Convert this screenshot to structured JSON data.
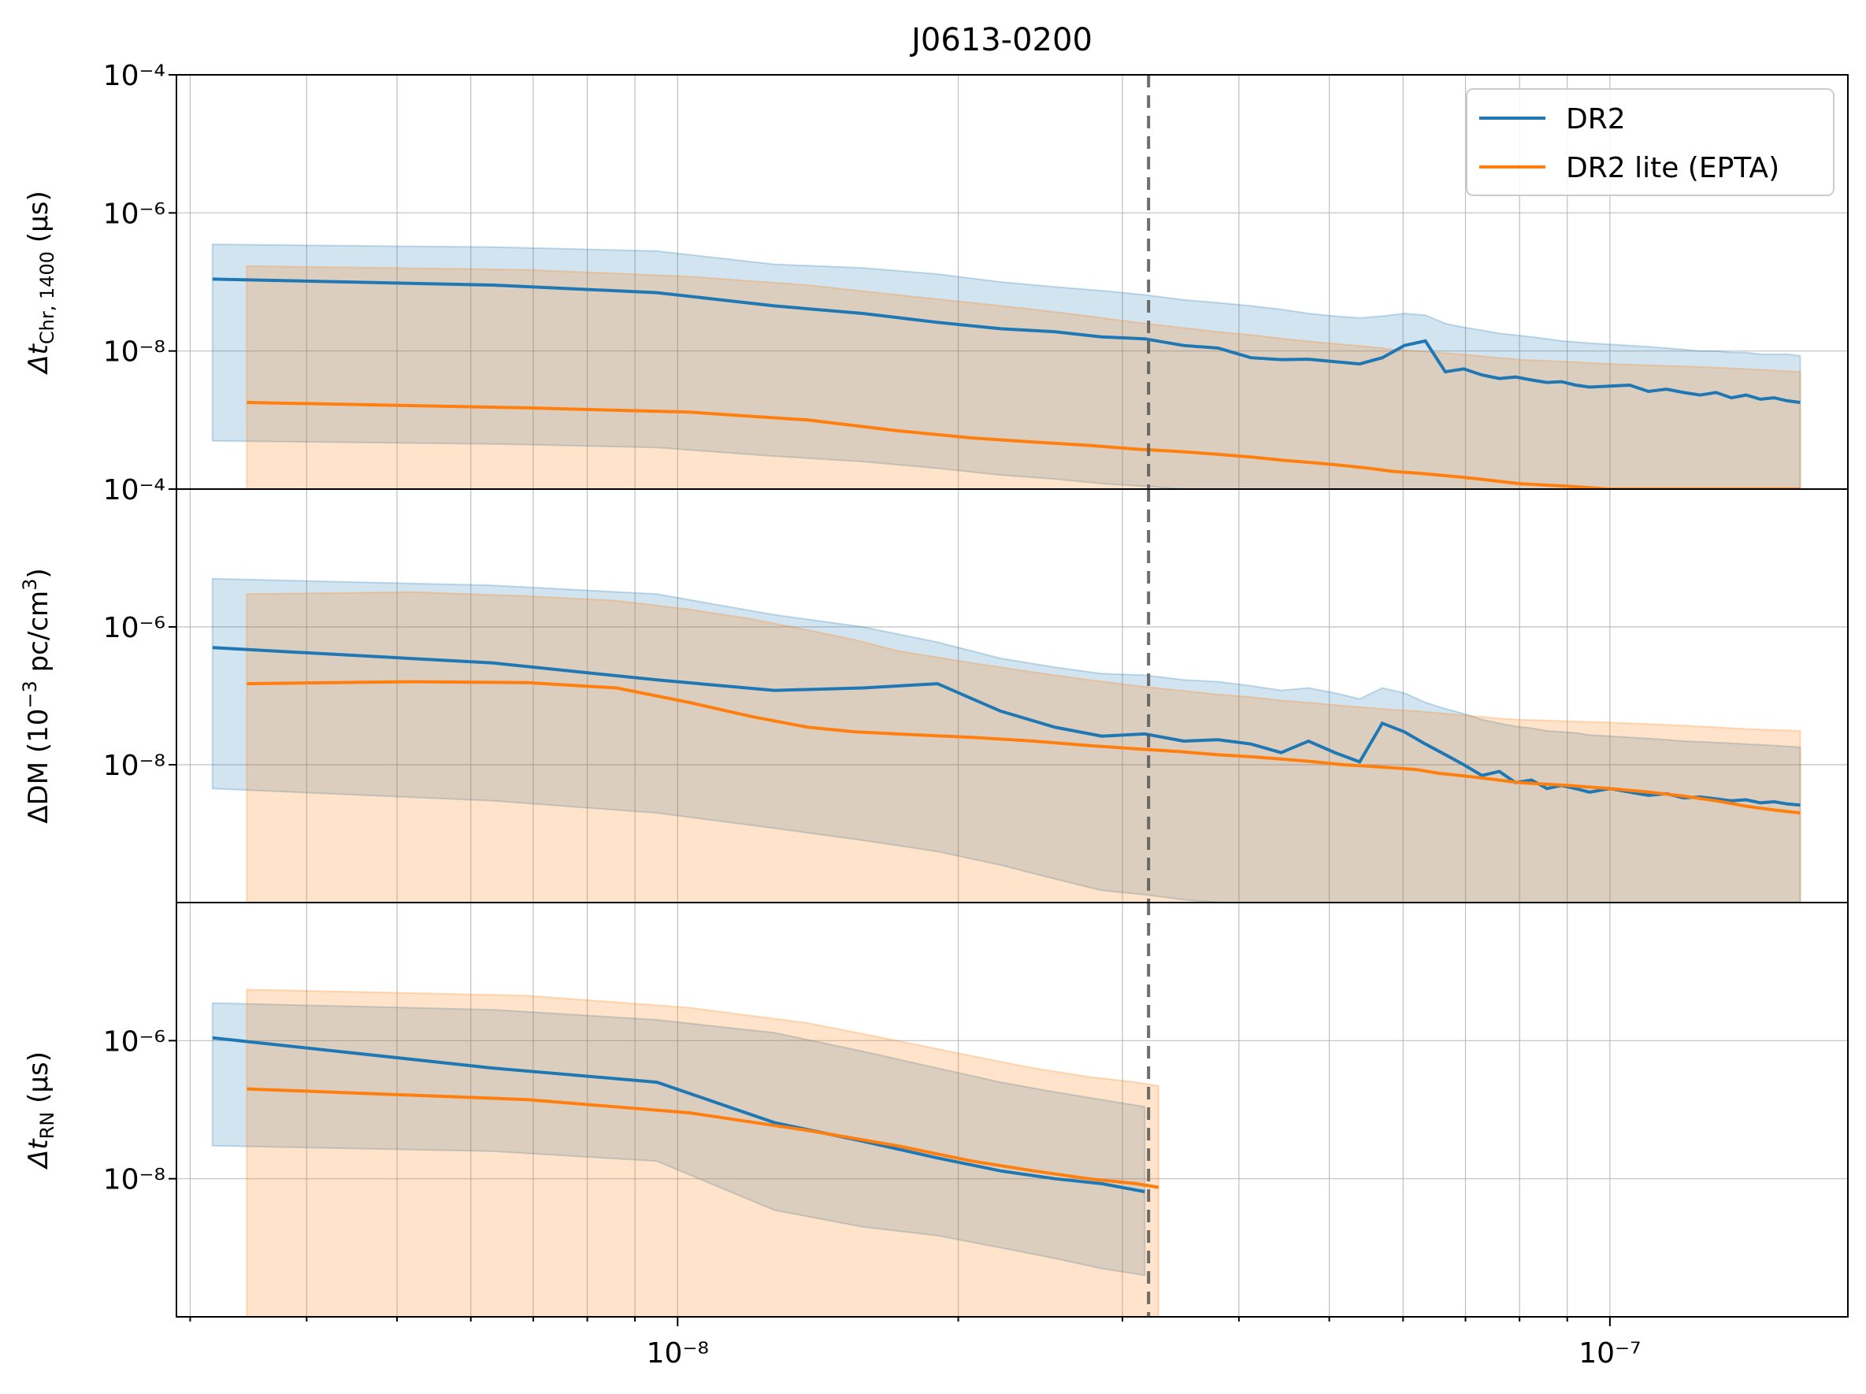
{
  "title": "J0613-0200",
  "colors": {
    "dr2": "#1f77b4",
    "dr2_lite": "#ff7f0e",
    "vline": "#555555",
    "grid": "#b0b0b0"
  },
  "legend": {
    "placement": "top-right",
    "entries": [
      "DR2",
      "DR2 lite (EPTA)"
    ]
  },
  "chart_data": {
    "type": "line",
    "x_scale": "log",
    "xlim": [
      2.9e-09,
      1.8e-07
    ],
    "x_tick_labels": [
      "10⁻⁸",
      "10⁻⁷"
    ],
    "vertical_line": {
      "x": 3.2e-08,
      "style": "dashed"
    },
    "panels": [
      {
        "name": "chromatic",
        "ylabel_main": "Δt",
        "ylabel_sub": "Chr, 1400",
        "ylabel_tail": " (μs)",
        "y_scale": "log",
        "ylim": [
          1e-10,
          0.0001
        ],
        "y_tick_labels": [
          "10⁻⁴",
          "10⁻⁶",
          "10⁻⁸"
        ],
        "series": [
          {
            "name": "DR2",
            "x": [
              3.17e-09,
              6.34e-09,
              9.5e-09,
              1.27e-08,
              1.58e-08,
              1.9e-08,
              2.22e-08,
              2.54e-08,
              2.85e-08,
              3.17e-08,
              3.49e-08,
              3.8e-08,
              4.12e-08,
              4.44e-08,
              4.75e-08,
              5.07e-08,
              5.39e-08,
              5.7e-08,
              6.02e-08,
              6.34e-08,
              6.66e-08,
              6.97e-08,
              7.29e-08,
              7.61e-08,
              7.92e-08,
              8.24e-08,
              8.56e-08,
              8.87e-08,
              9.19e-08,
              9.51e-08,
              1e-07,
              1.05e-07,
              1.1e-07,
              1.15e-07,
              1.2e-07,
              1.25e-07,
              1.3e-07,
              1.35e-07,
              1.4e-07,
              1.45e-07,
              1.5e-07,
              1.55e-07,
              1.6e-07
            ],
            "y": [
              1.1e-07,
              9e-08,
              7e-08,
              4.5e-08,
              3.5e-08,
              2.6e-08,
              2.1e-08,
              1.9e-08,
              1.6e-08,
              1.5e-08,
              1.2e-08,
              1.1e-08,
              8e-09,
              7.5e-09,
              7.6e-09,
              7e-09,
              6.5e-09,
              8e-09,
              1.2e-08,
              1.4e-08,
              5e-09,
              5.5e-09,
              4.5e-09,
              4e-09,
              4.2e-09,
              3.8e-09,
              3.5e-09,
              3.6e-09,
              3.2e-09,
              3e-09,
              3.1e-09,
              3.2e-09,
              2.6e-09,
              2.8e-09,
              2.5e-09,
              2.3e-09,
              2.5e-09,
              2.1e-09,
              2.3e-09,
              2e-09,
              2.1e-09,
              1.9e-09,
              1.8e-09
            ],
            "upper": [
              3.5e-07,
              3.2e-07,
              2.8e-07,
              1.8e-07,
              1.6e-07,
              1.3e-07,
              1e-07,
              8.5e-08,
              7.5e-08,
              6.5e-08,
              5.5e-08,
              5e-08,
              4.5e-08,
              4e-08,
              3.5e-08,
              3.2e-08,
              3e-08,
              3.2e-08,
              3.5e-08,
              3.3e-08,
              2.5e-08,
              2.2e-08,
              2e-08,
              1.8e-08,
              1.7e-08,
              1.6e-08,
              1.5e-08,
              1.4e-08,
              1.35e-08,
              1.3e-08,
              1.25e-08,
              1.2e-08,
              1.15e-08,
              1.1e-08,
              1.05e-08,
              1e-08,
              1e-08,
              9.5e-09,
              9.5e-09,
              9e-09,
              9e-09,
              9e-09,
              8.5e-09
            ],
            "lower": [
              5e-10,
              4.5e-10,
              4e-10,
              3e-10,
              2.5e-10,
              2e-10,
              1.6e-10,
              1.4e-10,
              1.2e-10,
              1.1e-10,
              1e-10,
              1e-10,
              1e-10,
              1e-10,
              1e-10,
              1e-10,
              1e-10,
              1e-10,
              1e-10,
              1e-10,
              1e-10,
              1e-10,
              1e-10,
              1e-10,
              1e-10,
              1e-10,
              1e-10,
              1e-10,
              1e-10,
              1e-10,
              1e-10,
              1e-10,
              1e-10,
              1e-10,
              1e-10,
              1e-10,
              1e-10,
              1e-10,
              1e-10,
              1e-10,
              1e-10,
              1e-10,
              1e-10
            ]
          },
          {
            "name": "DR2 lite (EPTA)",
            "x": [
              3.45e-09,
              6.9e-09,
              1.03e-08,
              1.38e-08,
              1.72e-08,
              2.07e-08,
              2.41e-08,
              2.76e-08,
              3.1e-08,
              3.45e-08,
              3.79e-08,
              4.14e-08,
              4.48e-08,
              4.83e-08,
              5.17e-08,
              5.52e-08,
              5.86e-08,
              6.21e-08,
              6.55e-08,
              6.9e-08,
              7.24e-08,
              7.59e-08,
              8e-08,
              9e-08,
              1e-07,
              1.2e-07,
              1.4e-07,
              1.6e-07
            ],
            "y": [
              1.8e-09,
              1.5e-09,
              1.3e-09,
              1e-09,
              7e-10,
              5.5e-10,
              4.8e-10,
              4.3e-10,
              3.8e-10,
              3.5e-10,
              3.2e-10,
              2.9e-10,
              2.6e-10,
              2.4e-10,
              2.2e-10,
              2e-10,
              1.8e-10,
              1.7e-10,
              1.6e-10,
              1.5e-10,
              1.4e-10,
              1.3e-10,
              1.2e-10,
              1.1e-10,
              1e-10,
              1e-10,
              1e-10,
              1e-10
            ],
            "upper": [
              1.7e-07,
              1.5e-07,
              1.2e-07,
              9e-08,
              6.5e-08,
              5e-08,
              4e-08,
              3.2e-08,
              2.6e-08,
              2.2e-08,
              1.9e-08,
              1.7e-08,
              1.5e-08,
              1.35e-08,
              1.25e-08,
              1.15e-08,
              1.05e-08,
              1e-08,
              9.5e-09,
              9e-09,
              8.5e-09,
              8e-09,
              7.5e-09,
              7e-09,
              6.5e-09,
              6e-09,
              5.5e-09,
              5e-09
            ],
            "lower": [
              1e-10,
              1e-10,
              1e-10,
              1e-10,
              1e-10,
              1e-10,
              1e-10,
              1e-10,
              1e-10,
              1e-10,
              1e-10,
              1e-10,
              1e-10,
              1e-10,
              1e-10,
              1e-10,
              1e-10,
              1e-10,
              1e-10,
              1e-10,
              1e-10,
              1e-10,
              1e-10,
              1e-10,
              1e-10,
              1e-10,
              1e-10,
              1e-10
            ]
          }
        ]
      },
      {
        "name": "dm",
        "ylabel_main": "ΔDM (10",
        "ylabel_sup": "−3",
        "ylabel_tail": " pc/cm",
        "ylabel_sup2": "3",
        "ylabel_end": ")",
        "y_scale": "log",
        "ylim": [
          1e-10,
          0.0001
        ],
        "y_tick_labels": [
          "10⁻⁴",
          "10⁻⁶",
          "10⁻⁸"
        ],
        "series": [
          {
            "name": "DR2",
            "x": [
              3.17e-09,
              6.34e-09,
              9.5e-09,
              1.27e-08,
              1.58e-08,
              1.9e-08,
              2.22e-08,
              2.54e-08,
              2.85e-08,
              3.17e-08,
              3.49e-08,
              3.8e-08,
              4.12e-08,
              4.44e-08,
              4.75e-08,
              5.07e-08,
              5.39e-08,
              5.7e-08,
              6.02e-08,
              6.34e-08,
              6.66e-08,
              6.97e-08,
              7.29e-08,
              7.61e-08,
              7.92e-08,
              8.24e-08,
              8.56e-08,
              8.87e-08,
              9.19e-08,
              9.51e-08,
              1e-07,
              1.05e-07,
              1.1e-07,
              1.15e-07,
              1.2e-07,
              1.25e-07,
              1.3e-07,
              1.35e-07,
              1.4e-07,
              1.45e-07,
              1.5e-07,
              1.55e-07,
              1.6e-07
            ],
            "y": [
              5e-07,
              3e-07,
              1.7e-07,
              1.2e-07,
              1.3e-07,
              1.5e-07,
              6e-08,
              3.5e-08,
              2.6e-08,
              2.8e-08,
              2.2e-08,
              2.3e-08,
              2e-08,
              1.5e-08,
              2.2e-08,
              1.5e-08,
              1.1e-08,
              4e-08,
              3e-08,
              2e-08,
              1.4e-08,
              1e-08,
              7e-09,
              8e-09,
              5.5e-09,
              6e-09,
              4.5e-09,
              5e-09,
              4.5e-09,
              4e-09,
              4.5e-09,
              4e-09,
              3.6e-09,
              3.8e-09,
              3.3e-09,
              3.4e-09,
              3.2e-09,
              3e-09,
              3.1e-09,
              2.8e-09,
              2.9e-09,
              2.7e-09,
              2.6e-09
            ],
            "upper": [
              5e-06,
              4e-06,
              3e-06,
              1.5e-06,
              1e-06,
              6e-07,
              3.5e-07,
              2.6e-07,
              2.1e-07,
              2e-07,
              1.7e-07,
              1.6e-07,
              1.4e-07,
              1.2e-07,
              1.3e-07,
              1.1e-07,
              9e-08,
              1.3e-07,
              1.1e-07,
              8e-08,
              6.5e-08,
              5.5e-08,
              4.5e-08,
              4e-08,
              3.6e-08,
              3.4e-08,
              3.1e-08,
              3e-08,
              2.9e-08,
              2.7e-08,
              2.6e-08,
              2.5e-08,
              2.4e-08,
              2.3e-08,
              2.2e-08,
              2.15e-08,
              2.1e-08,
              2.05e-08,
              2e-08,
              1.95e-08,
              1.9e-08,
              1.85e-08,
              1.8e-08
            ],
            "lower": [
              4.5e-09,
              3e-09,
              2e-09,
              1.2e-09,
              8e-10,
              5.5e-10,
              3.5e-10,
              2.2e-10,
              1.5e-10,
              1.3e-10,
              1.1e-10,
              1e-10,
              1e-10,
              1e-10,
              1e-10,
              1e-10,
              1e-10,
              1e-10,
              1e-10,
              1e-10,
              1e-10,
              1e-10,
              1e-10,
              1e-10,
              1e-10,
              1e-10,
              1e-10,
              1e-10,
              1e-10,
              1e-10,
              1e-10,
              1e-10,
              1e-10,
              1e-10,
              1e-10,
              1e-10,
              1e-10,
              1e-10,
              1e-10,
              1e-10,
              1e-10,
              1e-10,
              1e-10
            ]
          },
          {
            "name": "DR2 lite (EPTA)",
            "x": [
              3.45e-09,
              5.2e-09,
              6.9e-09,
              8.6e-09,
              1.03e-08,
              1.2e-08,
              1.38e-08,
              1.55e-08,
              1.72e-08,
              2.07e-08,
              2.41e-08,
              2.76e-08,
              3.1e-08,
              3.45e-08,
              3.79e-08,
              4.14e-08,
              4.48e-08,
              4.83e-08,
              5.17e-08,
              5.52e-08,
              5.86e-08,
              6.21e-08,
              6.55e-08,
              6.9e-08,
              7.24e-08,
              7.59e-08,
              8e-08,
              9e-08,
              1e-07,
              1.1e-07,
              1.2e-07,
              1.3e-07,
              1.4e-07,
              1.5e-07,
              1.6e-07
            ],
            "y": [
              1.5e-07,
              1.6e-07,
              1.55e-07,
              1.3e-07,
              8e-08,
              5e-08,
              3.5e-08,
              3e-08,
              2.8e-08,
              2.5e-08,
              2.2e-08,
              1.9e-08,
              1.7e-08,
              1.55e-08,
              1.4e-08,
              1.3e-08,
              1.2e-08,
              1.1e-08,
              1e-08,
              9.5e-09,
              9e-09,
              8.5e-09,
              7.5e-09,
              7e-09,
              6.5e-09,
              6e-09,
              5.5e-09,
              5e-09,
              4.5e-09,
              4e-09,
              3.5e-09,
              3e-09,
              2.5e-09,
              2.2e-09,
              2e-09
            ],
            "upper": [
              3e-06,
              3.2e-06,
              2.8e-06,
              2.4e-06,
              1.8e-06,
              1.3e-06,
              9e-07,
              6.5e-07,
              4.5e-07,
              3e-07,
              2.2e-07,
              1.7e-07,
              1.4e-07,
              1.2e-07,
              1.05e-07,
              9.5e-08,
              8.5e-08,
              7.8e-08,
              7.2e-08,
              6.7e-08,
              6.3e-08,
              6e-08,
              5.6e-08,
              5.3e-08,
              5e-08,
              4.7e-08,
              4.5e-08,
              4.3e-08,
              4.1e-08,
              3.9e-08,
              3.7e-08,
              3.5e-08,
              3.3e-08,
              3.2e-08,
              3.1e-08
            ],
            "lower": [
              1e-10,
              1e-10,
              1e-10,
              1e-10,
              1e-10,
              1e-10,
              1e-10,
              1e-10,
              1e-10,
              1e-10,
              1e-10,
              1e-10,
              1e-10,
              1e-10,
              1e-10,
              1e-10,
              1e-10,
              1e-10,
              1e-10,
              1e-10,
              1e-10,
              1e-10,
              1e-10,
              1e-10,
              1e-10,
              1e-10,
              1e-10,
              1e-10,
              1e-10,
              1e-10,
              1e-10,
              1e-10,
              1e-10,
              1e-10,
              1e-10
            ]
          }
        ]
      },
      {
        "name": "red-noise",
        "ylabel_main": "Δt",
        "ylabel_sub": "RN",
        "ylabel_tail": " (μs)",
        "y_scale": "log",
        "ylim": [
          1e-10,
          0.0001
        ],
        "y_tick_labels": [
          "10⁻⁶",
          "10⁻⁸"
        ],
        "series": [
          {
            "name": "DR2",
            "x": [
              3.17e-09,
              6.34e-09,
              9.5e-09,
              1.27e-08,
              1.58e-08,
              1.9e-08,
              2.22e-08,
              2.54e-08,
              2.85e-08,
              3.17e-08
            ],
            "y": [
              1.1e-06,
              4e-07,
              2.5e-07,
              6.5e-08,
              3.5e-08,
              2e-08,
              1.3e-08,
              1e-08,
              8.5e-09,
              6.5e-09
            ],
            "upper": [
              3.5e-06,
              2.8e-06,
              2e-06,
              1.3e-06,
              7e-07,
              4e-07,
              2.5e-07,
              1.8e-07,
              1.4e-07,
              1.1e-07
            ],
            "lower": [
              3e-08,
              2.5e-08,
              1.8e-08,
              3.5e-09,
              2e-09,
              1.5e-09,
              1e-09,
              7e-10,
              5e-10,
              4e-10
            ]
          },
          {
            "name": "DR2 lite (EPTA)",
            "x": [
              3.45e-09,
              6.9e-09,
              1.03e-08,
              1.38e-08,
              1.72e-08,
              2.07e-08,
              2.41e-08,
              2.76e-08,
              3.1e-08,
              3.28e-08
            ],
            "y": [
              2e-07,
              1.4e-07,
              9e-08,
              5e-08,
              3e-08,
              1.8e-08,
              1.3e-08,
              1e-08,
              8.5e-09,
              7.5e-09
            ],
            "upper": [
              5.5e-06,
              4.5e-06,
              3e-06,
              1.8e-06,
              1e-06,
              6e-07,
              4e-07,
              3e-07,
              2.5e-07,
              2.2e-07
            ],
            "lower": [
              1e-10,
              1e-10,
              1e-10,
              1e-10,
              1e-10,
              1e-10,
              1e-10,
              1e-10,
              1e-10,
              1e-10
            ]
          }
        ]
      }
    ]
  }
}
